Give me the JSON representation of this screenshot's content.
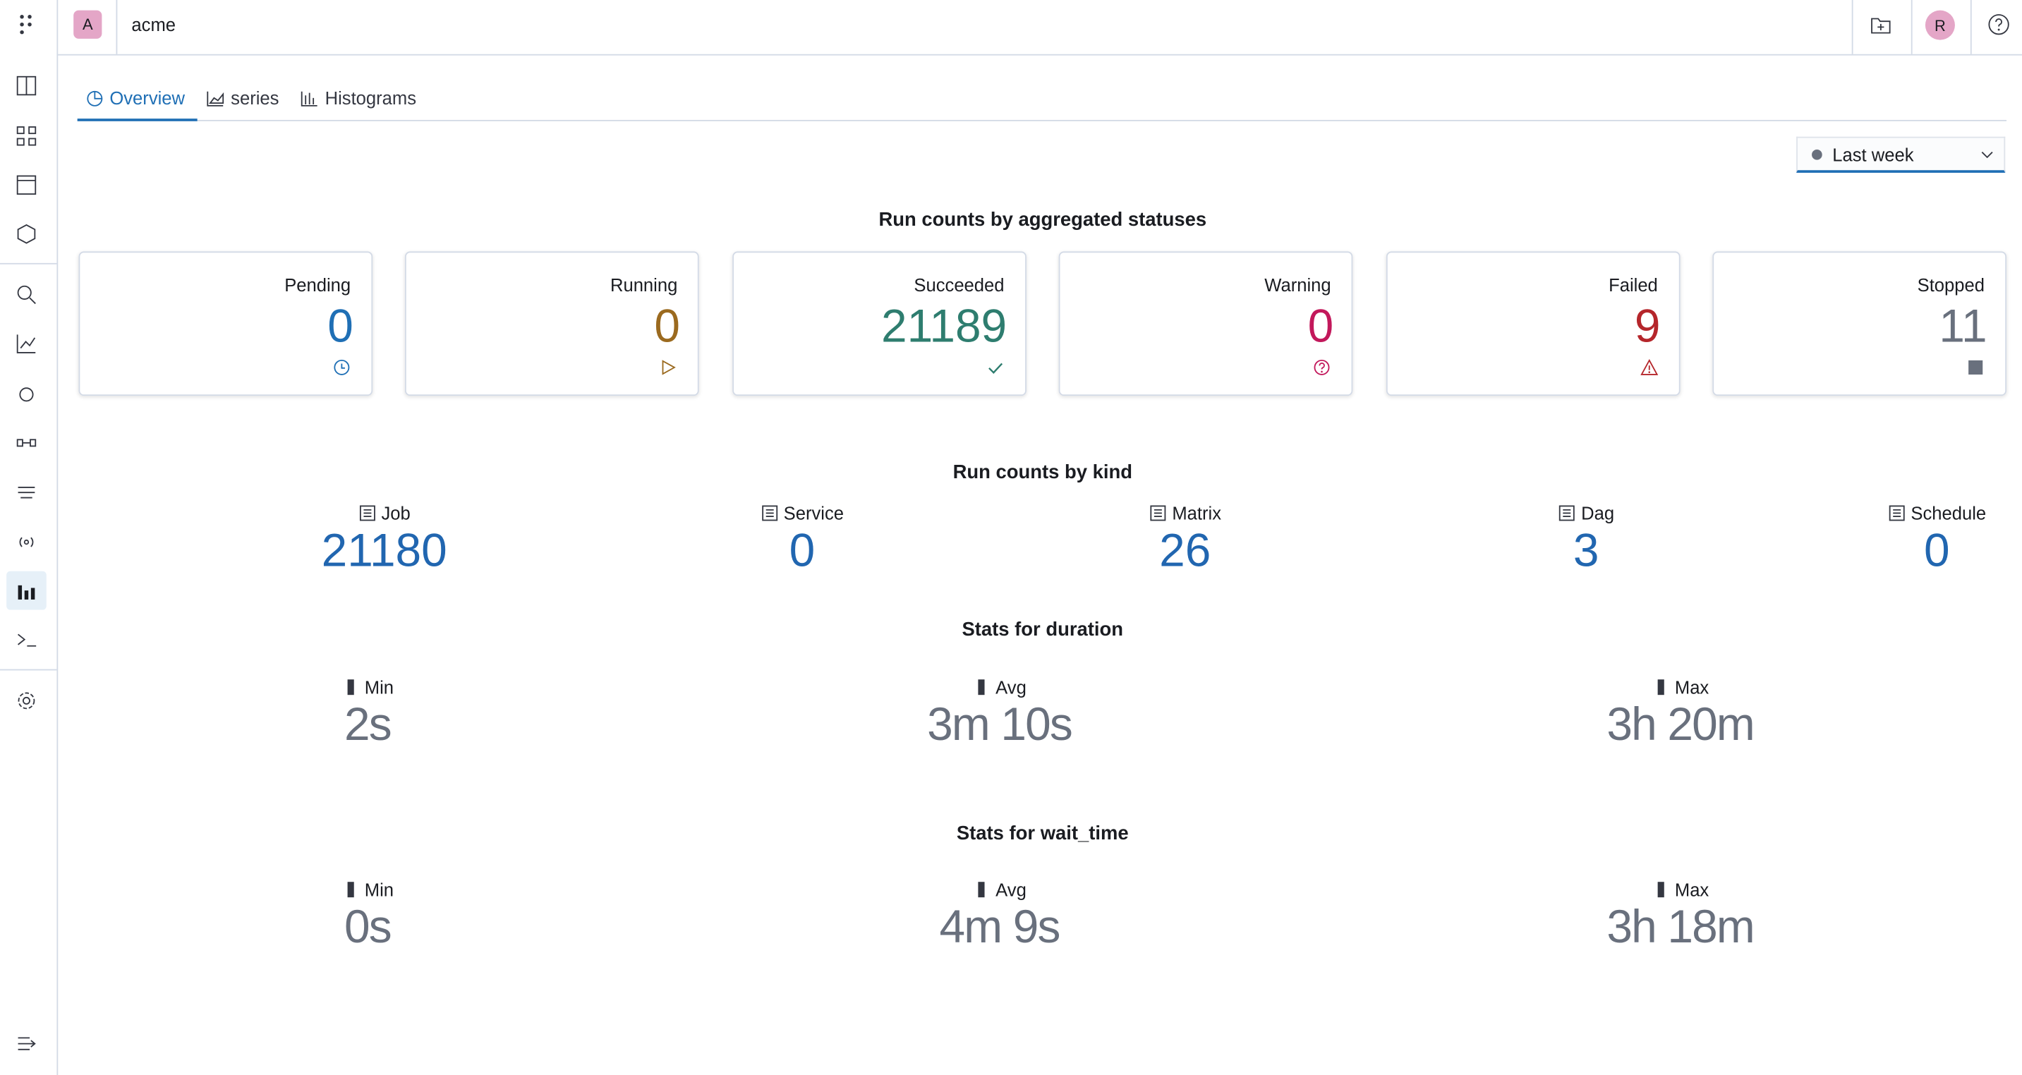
{
  "header": {
    "workspace_initial": "A",
    "org": "acme",
    "user_initial": "R"
  },
  "tabs": [
    "Overview",
    "series",
    "Histograms"
  ],
  "time_filter": "Last week",
  "status_section": {
    "title": "Run counts by aggregated statuses",
    "cards": [
      {
        "label": "Pending",
        "value": 0
      },
      {
        "label": "Running",
        "value": 0
      },
      {
        "label": "Succeeded",
        "value": 21189
      },
      {
        "label": "Warning",
        "value": 0
      },
      {
        "label": "Failed",
        "value": 9
      },
      {
        "label": "Stopped",
        "value": 11
      }
    ]
  },
  "kind_section": {
    "title": "Run counts by kind",
    "items": [
      {
        "label": "Job",
        "value": 21180
      },
      {
        "label": "Service",
        "value": 0
      },
      {
        "label": "Matrix",
        "value": 26
      },
      {
        "label": "Dag",
        "value": 3
      },
      {
        "label": "Schedule",
        "value": 0
      }
    ]
  },
  "duration_section": {
    "title": "Stats for duration",
    "stats": [
      {
        "label": "Min",
        "value": "2s"
      },
      {
        "label": "Avg",
        "value": "3m 10s"
      },
      {
        "label": "Max",
        "value": "3h 20m"
      }
    ]
  },
  "wait_section": {
    "title": "Stats for wait_time",
    "stats": [
      {
        "label": "Min",
        "value": "0s"
      },
      {
        "label": "Avg",
        "value": "4m 9s"
      },
      {
        "label": "Max",
        "value": "3h 18m"
      }
    ]
  }
}
